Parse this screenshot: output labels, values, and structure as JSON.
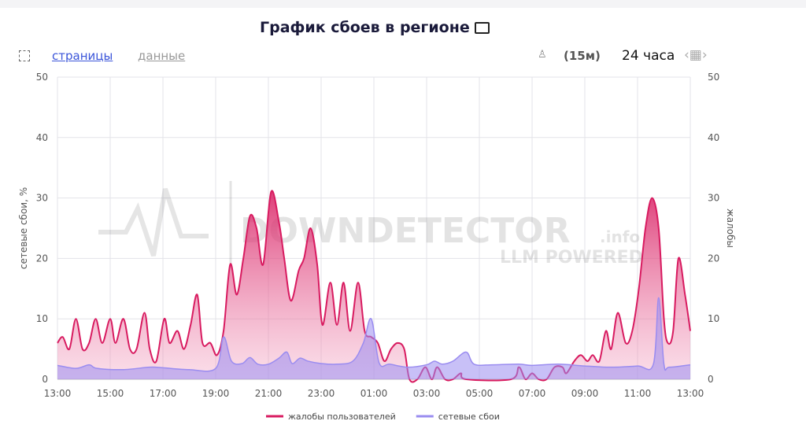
{
  "toolbar": {
    "tabs": [
      "страницы",
      "данные"
    ],
    "interval": "(15м)",
    "range": "24 часа"
  },
  "watermark": {
    "main": "DOWNDETECTOR",
    "suffix": ".info",
    "sub": "LLM POWERED"
  },
  "chart_data": {
    "type": "area",
    "title": "График сбоев в регионе",
    "ylabel": "сетевые сбои, %",
    "y2label": "жалобы",
    "xlim": [
      13,
      37
    ],
    "ylim": [
      0,
      50
    ],
    "y2lim": [
      0,
      50
    ],
    "xticks": [
      {
        "value": 13,
        "label": "13:00"
      },
      {
        "value": 15,
        "label": "15:00"
      },
      {
        "value": 17,
        "label": "17:00"
      },
      {
        "value": 19,
        "label": "19:00"
      },
      {
        "value": 21,
        "label": "21:00"
      },
      {
        "value": 23,
        "label": "23:00"
      },
      {
        "value": 25,
        "label": "01:00"
      },
      {
        "value": 27,
        "label": "03:00"
      },
      {
        "value": 29,
        "label": "05:00"
      },
      {
        "value": 31,
        "label": "07:00"
      },
      {
        "value": 33,
        "label": "09:00"
      },
      {
        "value": 35,
        "label": "11:00"
      },
      {
        "value": 37,
        "label": "13:00"
      }
    ],
    "yticks": [
      0,
      10,
      20,
      30,
      40,
      50
    ],
    "y2ticks": [
      0,
      10,
      20,
      30,
      40,
      50
    ],
    "grid": true,
    "series": [
      {
        "name": "жалобы пользователей",
        "color": "#d81b60",
        "axis": "y2",
        "x": [
          13.0,
          13.2,
          13.45,
          13.7,
          13.95,
          14.2,
          14.45,
          14.7,
          15.0,
          15.2,
          15.5,
          15.75,
          16.0,
          16.3,
          16.5,
          16.75,
          17.05,
          17.25,
          17.55,
          17.8,
          18.05,
          18.3,
          18.5,
          18.8,
          19.05,
          19.3,
          19.55,
          19.8,
          20.05,
          20.3,
          20.55,
          20.8,
          21.1,
          21.4,
          21.6,
          21.85,
          22.15,
          22.35,
          22.6,
          22.85,
          23.05,
          23.35,
          23.6,
          23.85,
          24.1,
          24.4,
          24.65,
          24.9,
          25.15,
          25.4,
          25.65,
          25.9,
          26.15,
          26.35,
          26.65,
          26.95,
          27.2,
          27.4,
          27.7,
          28.0,
          28.3,
          28.5,
          30.2,
          30.5,
          30.75,
          31.0,
          31.25,
          31.55,
          31.85,
          32.15,
          32.3,
          32.6,
          32.85,
          33.1,
          33.3,
          33.55,
          33.8,
          34.0,
          34.25,
          34.55,
          34.8,
          35.05,
          35.3,
          35.55,
          35.8,
          36.0,
          36.15,
          36.35,
          36.55,
          36.8,
          37.0
        ],
        "values": [
          6,
          7,
          5,
          10,
          5,
          6,
          10,
          6,
          10,
          6,
          10,
          5,
          5,
          11,
          5,
          3,
          10,
          6,
          8,
          5,
          9,
          14,
          6,
          6,
          4,
          8,
          19,
          14,
          20,
          27,
          25,
          19,
          31,
          26,
          20,
          13,
          18,
          20,
          25,
          19,
          9,
          16,
          9,
          16,
          8,
          16,
          8,
          7,
          6,
          3,
          5,
          6,
          5,
          0,
          0,
          2,
          0,
          2,
          0,
          0,
          1,
          0,
          0,
          2,
          0,
          1,
          0,
          0,
          2,
          2,
          1,
          3,
          4,
          3,
          4,
          3,
          8,
          5,
          11,
          6,
          8,
          15,
          25,
          30,
          25,
          10,
          6,
          8,
          20,
          14,
          8
        ]
      },
      {
        "name": "сетевые сбои",
        "color": "#9a8cf0",
        "axis": "y",
        "x": [
          13.0,
          13.7,
          14.2,
          14.5,
          15.5,
          16.5,
          17.0,
          18.0,
          19.0,
          19.3,
          19.6,
          20.0,
          20.3,
          20.6,
          21.0,
          21.4,
          21.7,
          21.9,
          22.2,
          22.5,
          23.0,
          23.6,
          24.2,
          24.6,
          24.9,
          25.2,
          25.6,
          26.3,
          27.0,
          27.3,
          27.6,
          28.0,
          28.5,
          28.8,
          29.5,
          30.5,
          31.0,
          32.0,
          33.0,
          34.0,
          35.0,
          35.6,
          35.8,
          36.0,
          36.2,
          37.0
        ],
        "values": [
          2.3,
          1.8,
          2.4,
          1.8,
          1.6,
          2,
          1.9,
          1.6,
          1.8,
          7,
          3,
          2.6,
          3.6,
          2.5,
          2.5,
          3.5,
          4.5,
          2.6,
          3.5,
          3,
          2.6,
          2.5,
          3,
          6,
          10,
          2.7,
          2.5,
          2,
          2.4,
          3,
          2.5,
          3,
          4.5,
          2.5,
          2.4,
          2.5,
          2.3,
          2.5,
          2.2,
          2,
          2.2,
          2.5,
          13.5,
          2.5,
          2,
          2.4
        ]
      }
    ]
  }
}
